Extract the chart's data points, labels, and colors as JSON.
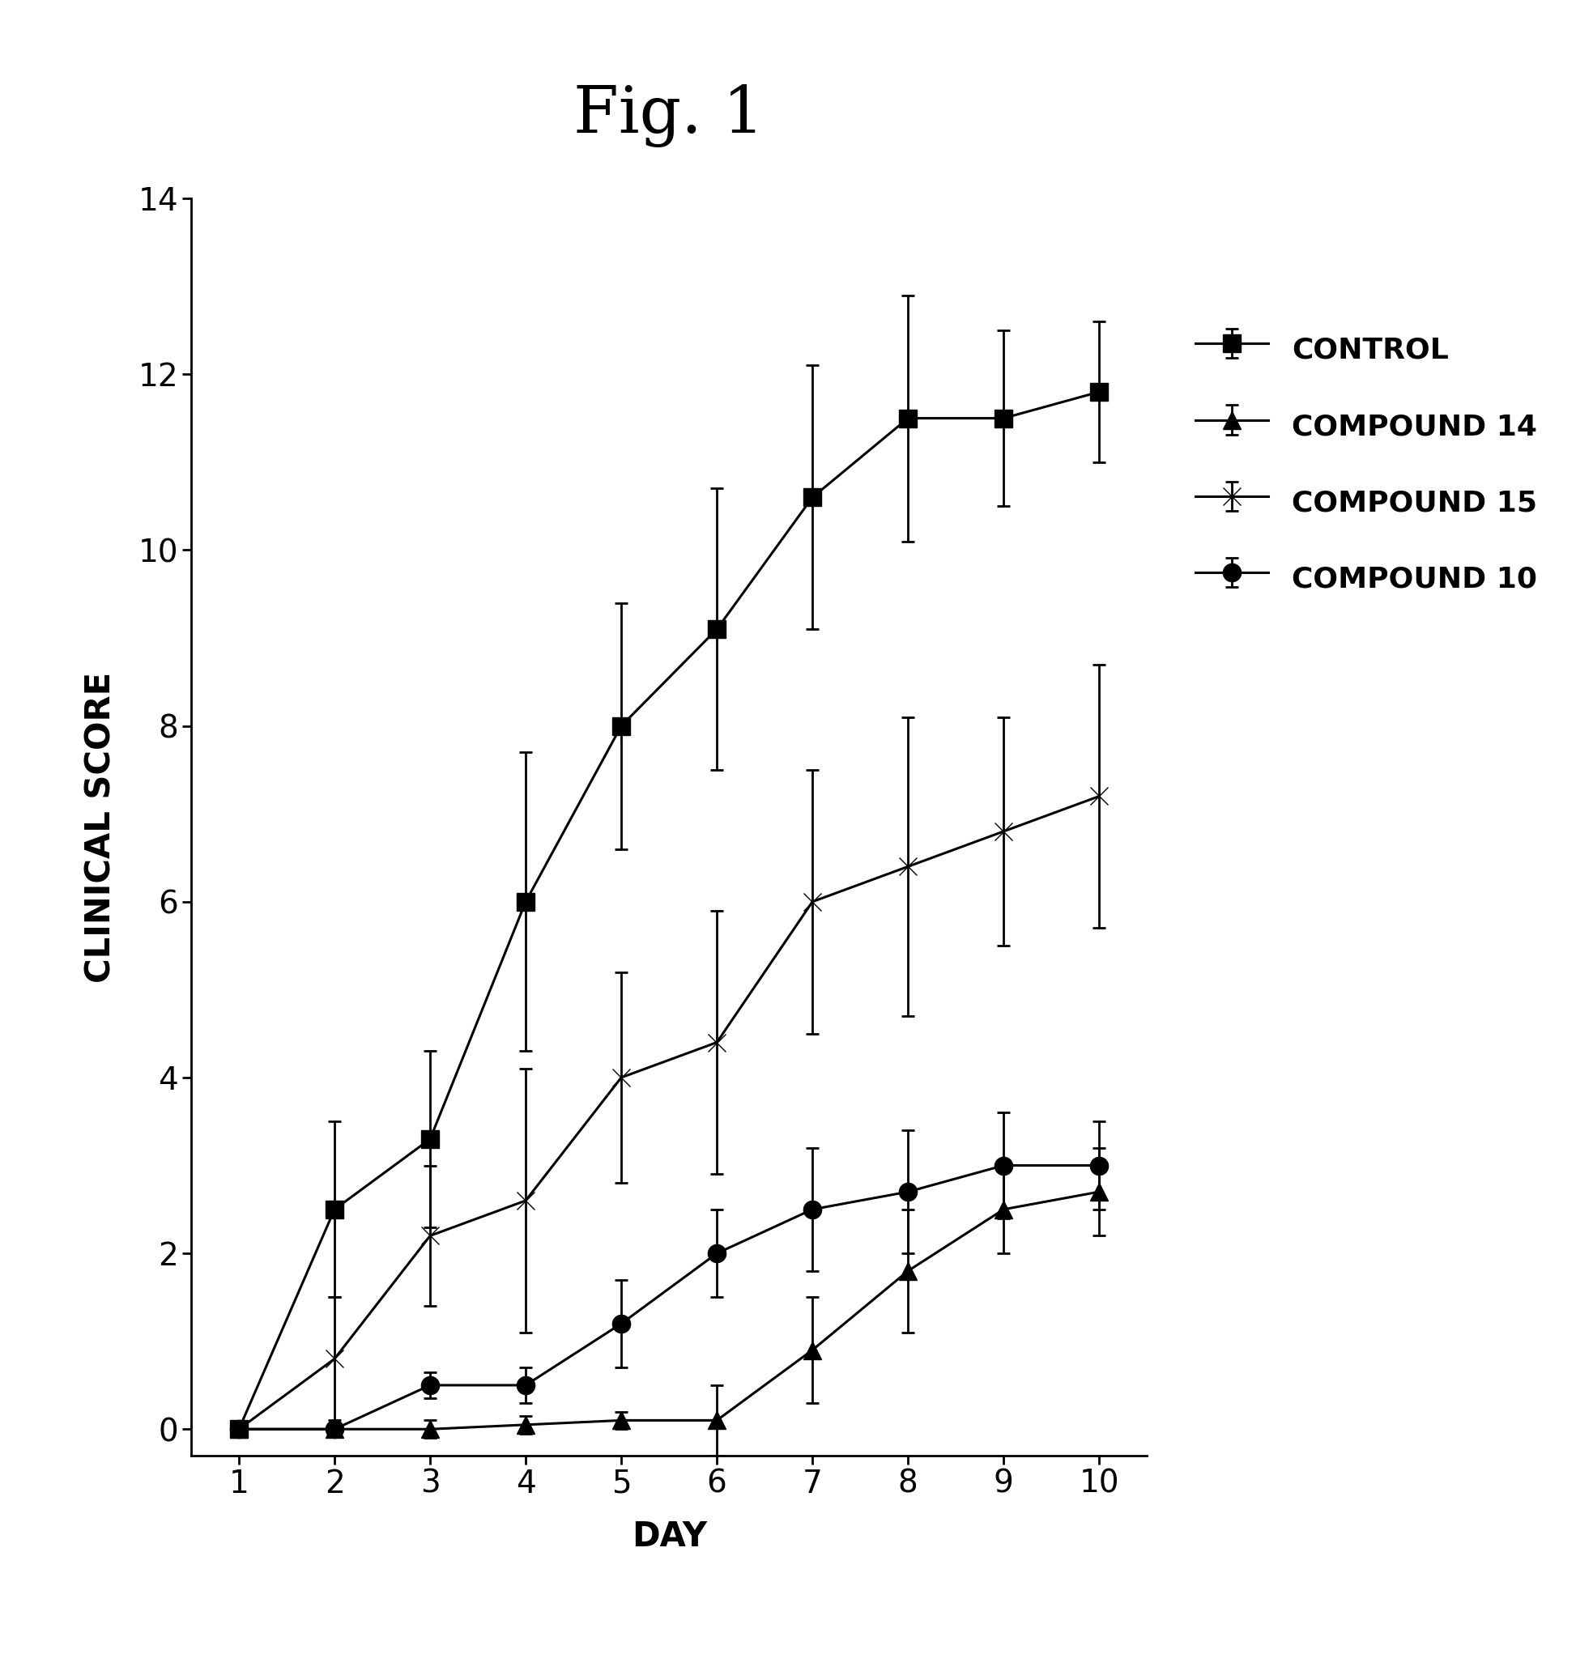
{
  "title": "Fig. 1",
  "xlabel": "DAY",
  "ylabel": "CLINICAL SCORE",
  "xlim": [
    0.5,
    10.5
  ],
  "ylim": [
    -0.3,
    14
  ],
  "yticks": [
    0,
    2,
    4,
    6,
    8,
    10,
    12,
    14
  ],
  "xticks": [
    1,
    2,
    3,
    4,
    5,
    6,
    7,
    8,
    9,
    10
  ],
  "days": [
    1,
    2,
    3,
    4,
    5,
    6,
    7,
    8,
    9,
    10
  ],
  "control": {
    "y": [
      0.0,
      2.5,
      3.3,
      6.0,
      8.0,
      9.1,
      10.6,
      11.5,
      11.5,
      11.8
    ],
    "yerr": [
      0.0,
      1.0,
      1.0,
      1.7,
      1.4,
      1.6,
      1.5,
      1.4,
      1.0,
      0.8
    ],
    "label": "CONTROL",
    "marker": "s",
    "markersize": 16,
    "linewidth": 2.2
  },
  "compound14": {
    "y": [
      0.0,
      0.0,
      0.0,
      0.05,
      0.1,
      0.1,
      0.9,
      1.8,
      2.5,
      2.7
    ],
    "yerr": [
      0.0,
      0.05,
      0.1,
      0.1,
      0.1,
      0.4,
      0.6,
      0.7,
      0.5,
      0.5
    ],
    "label": "COMPOUND 14",
    "marker": "^",
    "markersize": 16,
    "linewidth": 2.2
  },
  "compound15": {
    "y": [
      0.0,
      0.8,
      2.2,
      2.6,
      4.0,
      4.4,
      6.0,
      6.4,
      6.8,
      7.2
    ],
    "yerr": [
      0.0,
      0.7,
      0.8,
      1.5,
      1.2,
      1.5,
      1.5,
      1.7,
      1.3,
      1.5
    ],
    "label": "COMPOUND 15",
    "marker": "x",
    "markersize": 16,
    "linewidth": 2.2
  },
  "compound10": {
    "y": [
      0.0,
      0.0,
      0.5,
      0.5,
      1.2,
      2.0,
      2.5,
      2.7,
      3.0,
      3.0
    ],
    "yerr": [
      0.0,
      0.05,
      0.15,
      0.2,
      0.5,
      0.5,
      0.7,
      0.7,
      0.6,
      0.5
    ],
    "label": "COMPOUND 10",
    "marker": "o",
    "markersize": 16,
    "linewidth": 2.2
  },
  "background_color": "#ffffff",
  "line_color": "#000000",
  "title_fontsize": 58,
  "axis_label_fontsize": 30,
  "tick_fontsize": 28,
  "legend_fontsize": 26
}
